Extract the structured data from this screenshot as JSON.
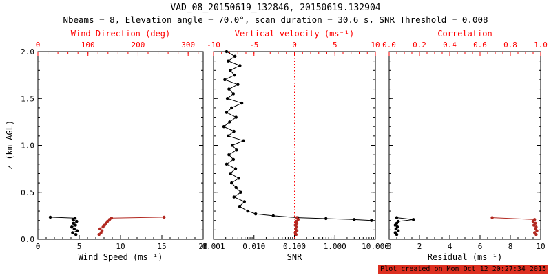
{
  "header": {
    "title": "VAD_08_20150619_132846, 20150619.132904",
    "subtitle": "Nbeams = 8, Elevation angle = 70.0°, scan duration = 30.6 s, SNR Threshold = 0.008"
  },
  "footer": {
    "created": "Plot created on Mon Oct 12 20:27:34 2015"
  },
  "colors": {
    "secondary_axis": "#ff0000",
    "series_red": "#b22820",
    "series_black": "#000000",
    "footer_bg": "#dd2f20",
    "footer_text": "#000000"
  },
  "chart_data": [
    {
      "type": "line",
      "name": "wind",
      "x": {
        "label": "Wind Speed (ms⁻¹)",
        "lim": [
          0,
          20
        ],
        "ticks": [
          0,
          5,
          10,
          15,
          20
        ],
        "tick_labels": [
          "0",
          "5",
          "10",
          "15",
          "20"
        ],
        "minor": 1
      },
      "x2": {
        "label": "Wind Direction (deg)",
        "lim": [
          0,
          330
        ],
        "ticks": [
          0,
          100,
          200,
          300
        ],
        "tick_labels": [
          "0",
          "100",
          "200",
          "300"
        ],
        "minor": 20
      },
      "y": {
        "label": "z (km AGL)",
        "lim": [
          0,
          2
        ],
        "ticks": [
          0,
          0.5,
          1,
          1.5,
          2
        ],
        "tick_labels": [
          "0.0",
          "0.5",
          "1.0",
          "1.5",
          "2.0"
        ],
        "minor": 0.1
      },
      "series": [
        {
          "name": "wind_speed",
          "axis": "bottom",
          "color": "#000000",
          "points": [
            [
              4.6,
              0.05
            ],
            [
              4.2,
              0.07
            ],
            [
              4.75,
              0.09
            ],
            [
              4.4,
              0.11
            ],
            [
              4.1,
              0.13
            ],
            [
              4.55,
              0.15
            ],
            [
              4.3,
              0.17
            ],
            [
              4.7,
              0.19
            ],
            [
              4.25,
              0.21
            ],
            [
              4.5,
              0.225
            ],
            [
              1.5,
              0.235
            ]
          ]
        },
        {
          "name": "wind_direction",
          "axis": "top",
          "color": "#b22820",
          "points": [
            [
              122,
              0.05
            ],
            [
              126,
              0.07
            ],
            [
              128,
              0.09
            ],
            [
              124,
              0.11
            ],
            [
              130,
              0.13
            ],
            [
              133,
              0.15
            ],
            [
              136,
              0.17
            ],
            [
              139,
              0.19
            ],
            [
              143,
              0.21
            ],
            [
              147,
              0.225
            ],
            [
              252,
              0.235
            ]
          ]
        }
      ]
    },
    {
      "type": "line",
      "name": "snr",
      "x": {
        "label": "SNR",
        "scale": "log",
        "lim": [
          0.001,
          10
        ],
        "ticks": [
          0.001,
          0.01,
          0.1,
          1,
          10
        ],
        "tick_labels": [
          "0.001",
          "0.010",
          "0.100",
          "1.000",
          "10.000"
        ]
      },
      "x2": {
        "label": "Vertical velocity (ms⁻¹)",
        "lim": [
          -10,
          10
        ],
        "ticks": [
          -10,
          -5,
          0,
          5,
          10
        ],
        "tick_labels": [
          "-10",
          "-5",
          "0",
          "5",
          "10"
        ],
        "minor": 1,
        "refline": 0
      },
      "y": {
        "lim": [
          0,
          2
        ],
        "ticks": [
          0,
          0.5,
          1,
          1.5,
          2
        ],
        "minor": 0.1
      },
      "series": [
        {
          "name": "snr_profile",
          "axis": "bottom",
          "color": "#000000",
          "points": [
            [
              0.0021,
              2.0
            ],
            [
              0.0034,
              1.95
            ],
            [
              0.0023,
              1.9
            ],
            [
              0.0045,
              1.85
            ],
            [
              0.0026,
              1.8
            ],
            [
              0.0033,
              1.75
            ],
            [
              0.0019,
              1.7
            ],
            [
              0.004,
              1.65
            ],
            [
              0.0024,
              1.6
            ],
            [
              0.0031,
              1.55
            ],
            [
              0.0022,
              1.5
            ],
            [
              0.005,
              1.45
            ],
            [
              0.0028,
              1.4
            ],
            [
              0.0021,
              1.35
            ],
            [
              0.0036,
              1.3
            ],
            [
              0.0025,
              1.25
            ],
            [
              0.0018,
              1.2
            ],
            [
              0.0032,
              1.15
            ],
            [
              0.0023,
              1.1
            ],
            [
              0.0055,
              1.05
            ],
            [
              0.0029,
              1.0
            ],
            [
              0.0037,
              0.95
            ],
            [
              0.0024,
              0.9
            ],
            [
              0.0031,
              0.85
            ],
            [
              0.0021,
              0.8
            ],
            [
              0.0035,
              0.75
            ],
            [
              0.0026,
              0.7
            ],
            [
              0.0042,
              0.65
            ],
            [
              0.0028,
              0.6
            ],
            [
              0.0036,
              0.55
            ],
            [
              0.0047,
              0.5
            ],
            [
              0.0032,
              0.45
            ],
            [
              0.0058,
              0.4
            ],
            [
              0.0044,
              0.35
            ],
            [
              0.007,
              0.3
            ],
            [
              0.011,
              0.27
            ],
            [
              0.03,
              0.25
            ],
            [
              0.12,
              0.23
            ],
            [
              0.6,
              0.22
            ],
            [
              3.0,
              0.21
            ],
            [
              8.0,
              0.2
            ]
          ]
        },
        {
          "name": "vertical_velocity",
          "axis": "top",
          "color": "#b22820",
          "points": [
            [
              0.2,
              0.05
            ],
            [
              0.1,
              0.07
            ],
            [
              0.3,
              0.09
            ],
            [
              0.15,
              0.11
            ],
            [
              0.25,
              0.13
            ],
            [
              0.1,
              0.15
            ],
            [
              0.3,
              0.17
            ],
            [
              0.2,
              0.19
            ],
            [
              0.45,
              0.21
            ],
            [
              0.3,
              0.23
            ]
          ]
        }
      ]
    },
    {
      "type": "line",
      "name": "residual",
      "x": {
        "label": "Residual (ms⁻¹)",
        "lim": [
          0,
          10
        ],
        "ticks": [
          0,
          2,
          4,
          6,
          8,
          10
        ],
        "tick_labels": [
          "0",
          "2",
          "4",
          "6",
          "8",
          "10"
        ],
        "minor": 0.5
      },
      "x2": {
        "label": "Correlation",
        "lim": [
          0,
          1
        ],
        "ticks": [
          0,
          0.2,
          0.4,
          0.6,
          0.8,
          1
        ],
        "tick_labels": [
          "0.0",
          "0.2",
          "0.4",
          "0.6",
          "0.8",
          "1.0"
        ],
        "minor": 0.05
      },
      "y": {
        "lim": [
          0,
          2
        ],
        "ticks": [
          0,
          0.5,
          1,
          1.5,
          2
        ],
        "minor": 0.1
      },
      "series": [
        {
          "name": "residual_profile",
          "axis": "bottom",
          "color": "#000000",
          "points": [
            [
              0.5,
              0.05
            ],
            [
              0.4,
              0.07
            ],
            [
              0.6,
              0.09
            ],
            [
              0.45,
              0.11
            ],
            [
              0.55,
              0.13
            ],
            [
              0.4,
              0.15
            ],
            [
              0.5,
              0.17
            ],
            [
              0.6,
              0.19
            ],
            [
              1.6,
              0.21
            ],
            [
              0.5,
              0.23
            ]
          ]
        },
        {
          "name": "correlation",
          "axis": "top",
          "color": "#b22820",
          "points": [
            [
              0.97,
              0.05
            ],
            [
              0.96,
              0.07
            ],
            [
              0.975,
              0.09
            ],
            [
              0.965,
              0.11
            ],
            [
              0.97,
              0.13
            ],
            [
              0.955,
              0.15
            ],
            [
              0.965,
              0.17
            ],
            [
              0.95,
              0.19
            ],
            [
              0.96,
              0.21
            ],
            [
              0.68,
              0.23
            ]
          ]
        }
      ]
    }
  ]
}
